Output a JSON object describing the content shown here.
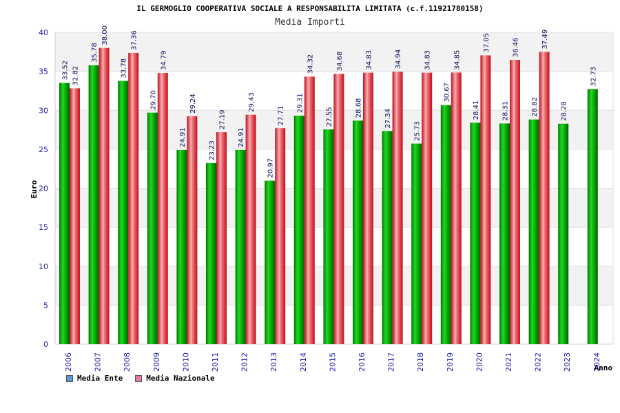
{
  "chart_data": {
    "type": "bar",
    "title": "IL GERMOGLIO COOPERATIVA SOCIALE A RESPONSABILITA LIMITATA (c.f.11921780158)",
    "subtitle": "Media Importi",
    "xlabel": "Anno",
    "ylabel": "Euro",
    "ylim": [
      0,
      40
    ],
    "yticks": [
      0,
      5,
      10,
      15,
      20,
      25,
      30,
      35,
      40
    ],
    "grid": true,
    "legend_position": "bottom-left",
    "categories": [
      "2006",
      "2007",
      "2008",
      "2009",
      "2010",
      "2011",
      "2012",
      "2013",
      "2014",
      "2015",
      "2016",
      "2017",
      "2018",
      "2019",
      "2020",
      "2021",
      "2022",
      "2023",
      "2024"
    ],
    "series": [
      {
        "name": "Media Ente",
        "color": "#00b000",
        "legend_color": "#5b9bd5",
        "values": [
          33.52,
          35.78,
          33.78,
          29.7,
          24.91,
          23.23,
          24.91,
          20.97,
          29.31,
          27.55,
          28.68,
          27.34,
          25.73,
          30.67,
          28.41,
          28.31,
          28.82,
          28.28,
          32.73
        ]
      },
      {
        "name": "Media Nazionale",
        "color": "#e8202a",
        "legend_color": "#e07aa0",
        "values": [
          32.82,
          38.0,
          37.36,
          34.79,
          29.24,
          27.19,
          29.43,
          27.71,
          34.32,
          34.68,
          34.83,
          34.94,
          34.83,
          34.85,
          37.05,
          36.46,
          37.49,
          null,
          null
        ]
      }
    ]
  }
}
